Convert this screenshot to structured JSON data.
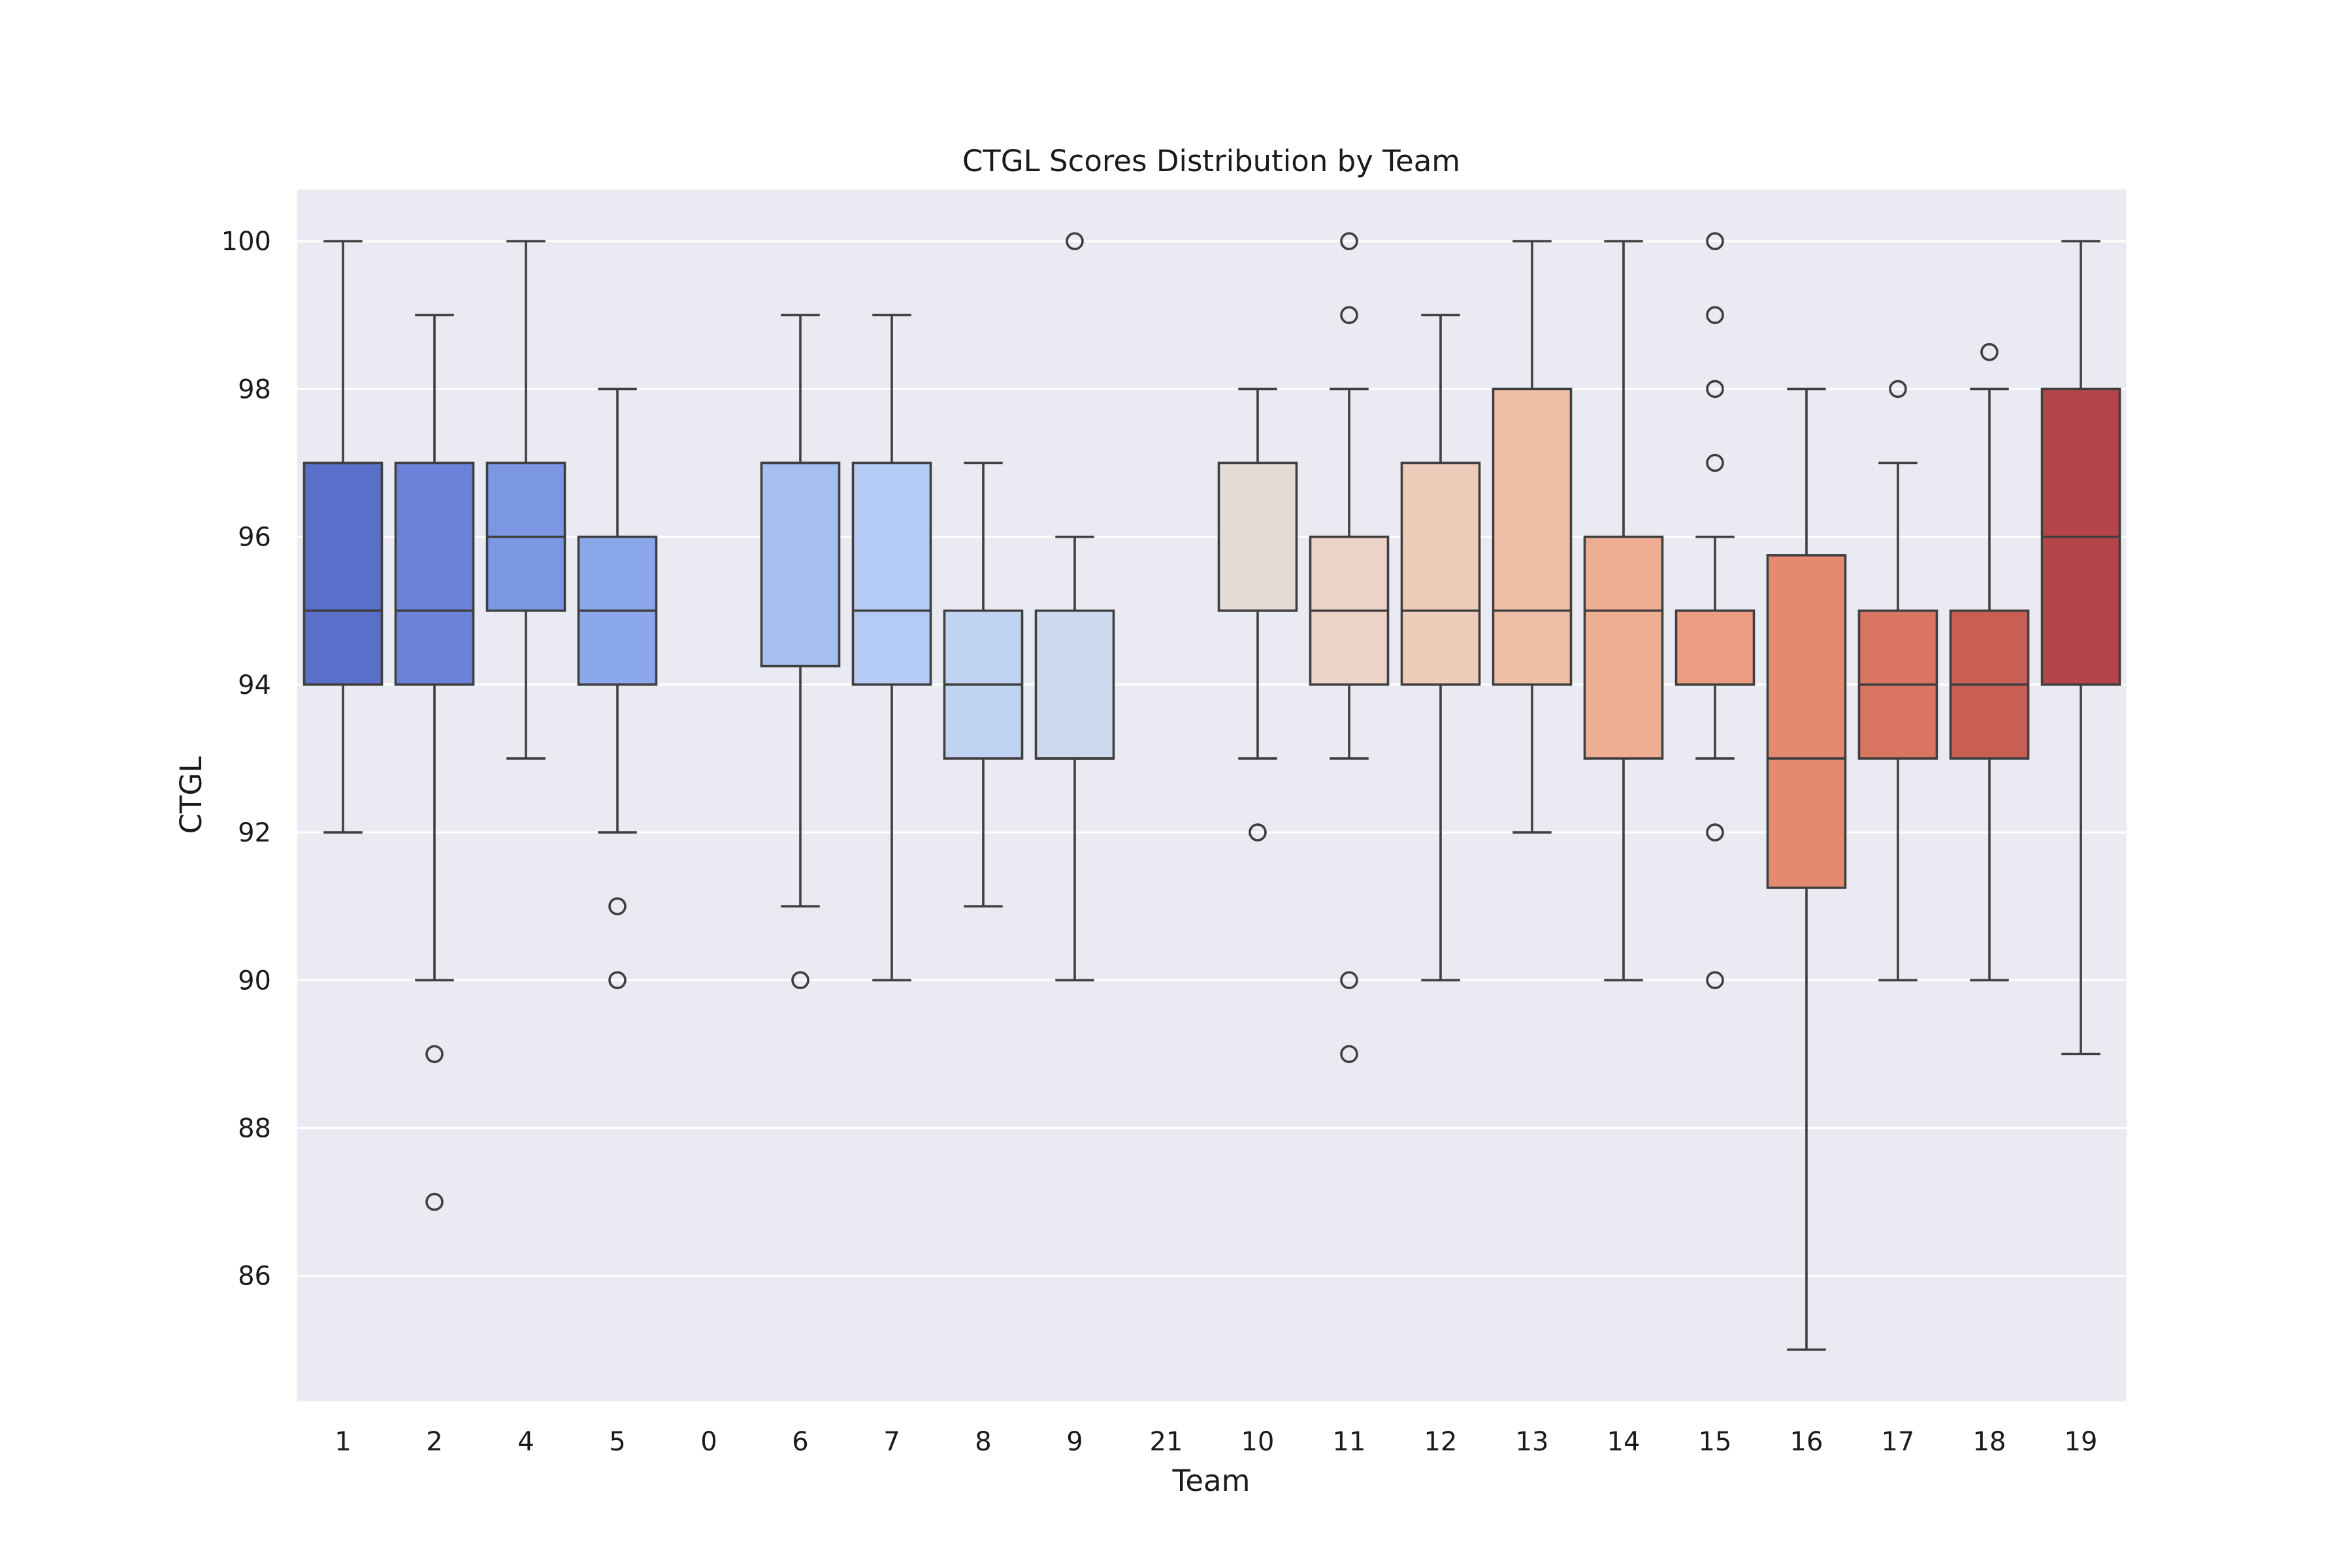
{
  "chart_data": {
    "type": "box",
    "title": "CTGL Scores Distribution by Team",
    "xlabel": "Team",
    "ylabel": "CTGL",
    "ylim": [
      84.3,
      100.7
    ],
    "yticks": [
      86,
      88,
      90,
      92,
      94,
      96,
      98,
      100
    ],
    "grid": true,
    "background_color": "#eaeaf2",
    "categories": [
      "1",
      "2",
      "4",
      "5",
      "0",
      "6",
      "7",
      "8",
      "9",
      "21",
      "10",
      "11",
      "12",
      "13",
      "14",
      "15",
      "16",
      "17",
      "18",
      "19"
    ],
    "boxes": [
      {
        "team": "1",
        "q1": 94,
        "median": 95,
        "q3": 97,
        "whisker_low": 92,
        "whisker_high": 100,
        "outliers": [],
        "color": "#5a6fc9"
      },
      {
        "team": "2",
        "q1": 94,
        "median": 95,
        "q3": 97,
        "whisker_low": 90,
        "whisker_high": 99,
        "outliers": [
          89,
          87
        ],
        "color": "#6a82d8"
      },
      {
        "team": "4",
        "q1": 95,
        "median": 96,
        "q3": 97,
        "whisker_low": 93,
        "whisker_high": 100,
        "outliers": [],
        "color": "#7b96e3"
      },
      {
        "team": "5",
        "q1": 94,
        "median": 95,
        "q3": 96,
        "whisker_low": 92,
        "whisker_high": 98,
        "outliers": [
          91,
          90
        ],
        "color": "#8ba8ec"
      },
      {
        "team": "0",
        "q1": null,
        "median": null,
        "q3": null,
        "whisker_low": null,
        "whisker_high": null,
        "outliers": [],
        "color": "#9bb8f2"
      },
      {
        "team": "6",
        "q1": 94.25,
        "median": 97,
        "q3": 97,
        "whisker_low": 91,
        "whisker_high": 99,
        "outliers": [
          90
        ],
        "color": "#a5bff3"
      },
      {
        "team": "7",
        "q1": 94,
        "median": 95,
        "q3": 97,
        "whisker_low": 90,
        "whisker_high": 99,
        "outliers": [],
        "color": "#b3cbf5"
      },
      {
        "team": "8",
        "q1": 93,
        "median": 94,
        "q3": 95,
        "whisker_low": 91,
        "whisker_high": 97,
        "outliers": [],
        "color": "#c0d3f2"
      },
      {
        "team": "9",
        "q1": 93,
        "median": 93,
        "q3": 95,
        "whisker_low": 90,
        "whisker_high": 96,
        "outliers": [
          100
        ],
        "color": "#cdd9ec"
      },
      {
        "team": "21",
        "q1": null,
        "median": null,
        "q3": null,
        "whisker_low": null,
        "whisker_high": null,
        "outliers": [],
        "color": "#dcdde2"
      },
      {
        "team": "10",
        "q1": 95,
        "median": 95,
        "q3": 97,
        "whisker_low": 93,
        "whisker_high": 98,
        "outliers": [
          92
        ],
        "color": "#e5dbd6"
      },
      {
        "team": "11",
        "q1": 94,
        "median": 95,
        "q3": 96,
        "whisker_low": 93,
        "whisker_high": 98,
        "outliers": [
          100,
          99,
          90,
          89
        ],
        "color": "#ecd3c7"
      },
      {
        "team": "12",
        "q1": 94,
        "median": 95,
        "q3": 97,
        "whisker_low": 90,
        "whisker_high": 99,
        "outliers": [],
        "color": "#efcbba"
      },
      {
        "team": "13",
        "q1": 94,
        "median": 95,
        "q3": 98,
        "whisker_low": 92,
        "whisker_high": 100,
        "outliers": [],
        "color": "#f0bea6"
      },
      {
        "team": "14",
        "q1": 93,
        "median": 95,
        "q3": 96,
        "whisker_low": 90,
        "whisker_high": 100,
        "outliers": [],
        "color": "#efad93"
      },
      {
        "team": "15",
        "q1": 94,
        "median": 95,
        "q3": 95,
        "whisker_low": 93,
        "whisker_high": 96,
        "outliers": [
          100,
          99,
          98,
          97,
          92,
          90
        ],
        "color": "#ea9d82"
      },
      {
        "team": "16",
        "q1": 91.25,
        "median": 93,
        "q3": 95.75,
        "whisker_low": 85,
        "whisker_high": 98,
        "outliers": [],
        "color": "#e48a71"
      },
      {
        "team": "17",
        "q1": 93,
        "median": 94,
        "q3": 95,
        "whisker_low": 90,
        "whisker_high": 97,
        "outliers": [
          98
        ],
        "color": "#d97561"
      },
      {
        "team": "18",
        "q1": 93,
        "median": 94,
        "q3": 95,
        "whisker_low": 90,
        "whisker_high": 98,
        "outliers": [
          98.5
        ],
        "color": "#c95f52"
      },
      {
        "team": "19",
        "q1": 94,
        "median": 96,
        "q3": 98,
        "whisker_low": 89,
        "whisker_high": 100,
        "outliers": [],
        "color": "#b54548"
      }
    ]
  }
}
